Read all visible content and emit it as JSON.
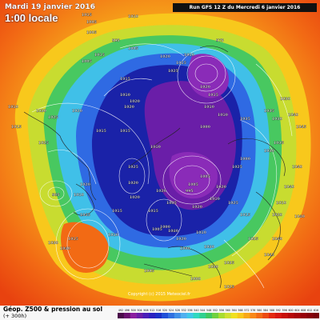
{
  "header": {
    "date_label": "Mardi 19 janvier 2016",
    "time_label": "1:00 locale",
    "run_info": "Run GFS 12 Z du Mercredi 6 janvier 2016"
  },
  "footer": {
    "title": "Géop. Z500 & pression au sol",
    "subtitle": "(+ 300h)",
    "copyright": "Copyright (c) 2015 Meteociel.fr"
  },
  "colors": {
    "ring_orange": "#f26a14",
    "ring_yellow": "#f6c31c",
    "ring_lime": "#b8dd30",
    "ring_green": "#3dbf5c",
    "ring_cyan": "#3fb9e8",
    "ring_blue": "#2f5de3",
    "ring_deep_blue": "#1a22a8",
    "low_purple": "#6a1ea8",
    "low_magenta": "#8a2bb8"
  },
  "legend": {
    "labels": [
      "492",
      "496",
      "500",
      "504",
      "508",
      "512",
      "516",
      "520",
      "524",
      "528",
      "532",
      "536",
      "540",
      "544",
      "548",
      "552",
      "556",
      "560",
      "564",
      "568",
      "572",
      "576",
      "580",
      "584",
      "588",
      "592",
      "596",
      "600",
      "604",
      "608",
      "612",
      "616"
    ],
    "colors": [
      "#4a0a4a",
      "#6a1070",
      "#8a1ea0",
      "#6a1ea8",
      "#4a1eb8",
      "#2a22c0",
      "#1a30c8",
      "#2050d8",
      "#3070e0",
      "#4090e8",
      "#50b0f0",
      "#40c8e8",
      "#30d8c0",
      "#30d090",
      "#40c860",
      "#70d040",
      "#a8dc30",
      "#d0e030",
      "#f0e020",
      "#f8c81c",
      "#f8a818",
      "#f88818",
      "#f26a14",
      "#ec4a10",
      "#e42a10",
      "#d81810",
      "#c81008",
      "#b80808",
      "#a80408",
      "#980008",
      "#880008",
      "#780008"
    ]
  },
  "pressure_labels": [
    "1015",
    "1005",
    "1010",
    "1005",
    "995",
    "1005",
    "1015",
    "1005",
    "1020",
    "1015",
    "1010",
    "975",
    "1025",
    "1015",
    "1020",
    "1015",
    "1010",
    "1035",
    "1010",
    "1030",
    "1040",
    "1015",
    "1010",
    "1020",
    "1025",
    "1020",
    "995",
    "1000",
    "1005",
    "1010",
    "1020",
    "1025",
    "1030",
    "1010",
    "1015",
    "985",
    "1010",
    "1020",
    "1035",
    "1030",
    "1025",
    "1005",
    "1000",
    "1040",
    "1040",
    "1010",
    "1045",
    "1030",
    "1005",
    "1020",
    "1015",
    "1020",
    "1020",
    "1025",
    "1015",
    "1020",
    "1035",
    "1040",
    "1000",
    "1045",
    "1010",
    "1030",
    "1015",
    "1040",
    "1000",
    "1025",
    "1020",
    "1005",
    "1010",
    "1015",
    "1030",
    "1005",
    "1045",
    "1040",
    "1035",
    "1025",
    "1020",
    "1030",
    "1035",
    "1040",
    "1000",
    "1015",
    "1020",
    "1010"
  ]
}
